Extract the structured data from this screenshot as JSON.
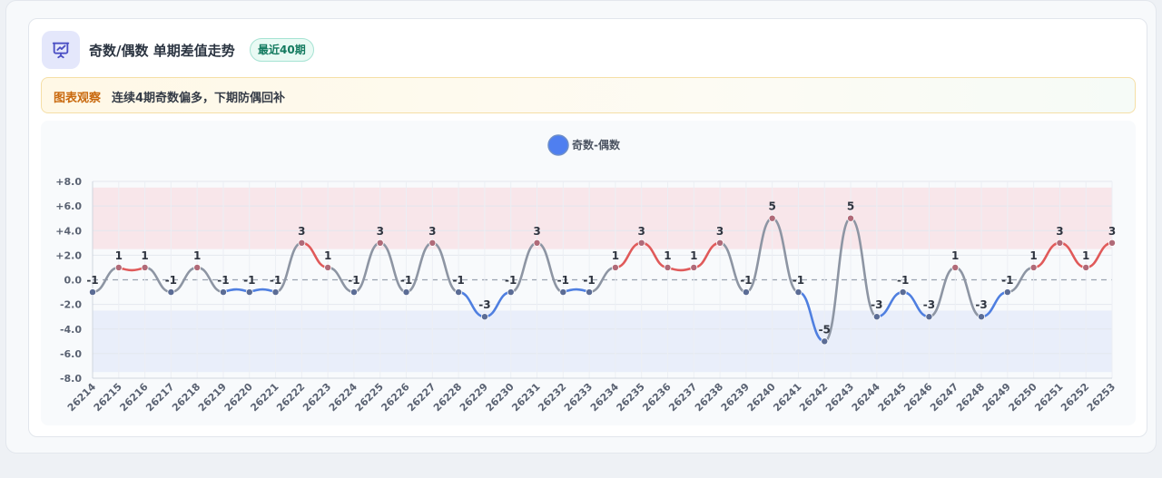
{
  "header": {
    "title": "奇数/偶数 单期差值走势",
    "badge": "最近40期",
    "icon": "chart-presentation-icon"
  },
  "note": {
    "tag": "图表观察",
    "text": "连续4期奇数偏多，下期防偶回补"
  },
  "colors": {
    "positive": "#e05a5a",
    "negative": "#4f7fe0",
    "neutral": "#8d95a3",
    "legend": "#4f7ff0"
  },
  "chart_data": {
    "type": "line",
    "legend": [
      "奇数-偶数"
    ],
    "legend_position": "top",
    "x": [
      "26214",
      "26215",
      "26216",
      "26217",
      "26218",
      "26219",
      "26220",
      "26221",
      "26222",
      "26223",
      "26224",
      "26225",
      "26226",
      "26227",
      "26228",
      "26229",
      "26230",
      "26231",
      "26232",
      "26233",
      "26234",
      "26235",
      "26236",
      "26237",
      "26238",
      "26239",
      "26240",
      "26241",
      "26242",
      "26243",
      "26244",
      "26245",
      "26246",
      "26247",
      "26248",
      "26249",
      "26250",
      "26251",
      "26252",
      "26253"
    ],
    "series": [
      {
        "name": "奇数-偶数",
        "values": [
          -1,
          1,
          1,
          -1,
          1,
          -1,
          -1,
          -1,
          3,
          1,
          -1,
          3,
          -1,
          3,
          -1,
          -3,
          -1,
          3,
          -1,
          -1,
          1,
          3,
          1,
          1,
          3,
          -1,
          5,
          -1,
          -5,
          5,
          -3,
          -1,
          -3,
          1,
          -3,
          -1,
          1,
          3,
          1,
          3
        ]
      }
    ],
    "ylim": [
      -8,
      8
    ],
    "yticks": [
      "+8.0",
      "+6.0",
      "+4.0",
      "+2.0",
      "0.0",
      "-2.0",
      "-4.0",
      "-6.0",
      "-8.0"
    ],
    "bands": [
      {
        "from": 2.5,
        "to": 7.5,
        "color": "#f8e6ea"
      },
      {
        "from": -7.5,
        "to": -2.5,
        "color": "#e9eefa"
      }
    ],
    "zero_line": "dashed",
    "grid": true,
    "xlabel": "",
    "ylabel": ""
  }
}
